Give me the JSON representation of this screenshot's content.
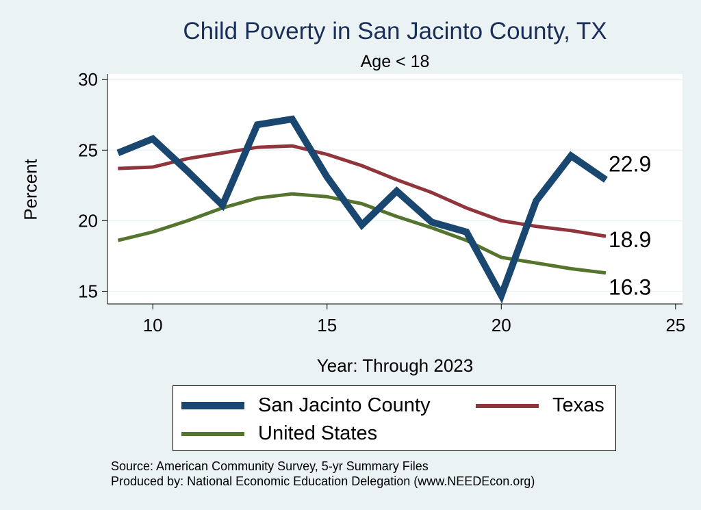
{
  "chart_data": {
    "type": "line",
    "title": "Child Poverty in San Jacinto County, TX",
    "subtitle": "Age < 18",
    "xlabel": "Year: Through 2023",
    "ylabel": "Percent",
    "xlim": [
      8.7,
      25.2
    ],
    "ylim": [
      14.1,
      30.4
    ],
    "xticks": [
      10,
      15,
      20,
      25
    ],
    "yticks": [
      15,
      20,
      25,
      30
    ],
    "grid": true,
    "legend_position": "bottom",
    "series": [
      {
        "name": "San Jacinto County",
        "color": "#1a476f",
        "x": [
          9,
          10,
          11,
          12,
          13,
          14,
          15,
          16,
          17,
          18,
          19,
          20,
          21,
          22,
          23
        ],
        "y": [
          24.8,
          25.8,
          23.5,
          21.1,
          26.8,
          27.2,
          23.1,
          19.7,
          22.1,
          19.9,
          19.2,
          14.7,
          21.4,
          24.6,
          22.9
        ],
        "end_label": "22.9"
      },
      {
        "name": "Texas",
        "color": "#90353b",
        "x": [
          9,
          10,
          11,
          12,
          13,
          14,
          15,
          16,
          17,
          18,
          19,
          20,
          21,
          22,
          23
        ],
        "y": [
          23.7,
          23.8,
          24.4,
          24.8,
          25.2,
          25.3,
          24.7,
          23.9,
          22.9,
          22.0,
          20.9,
          20.0,
          19.6,
          19.3,
          18.9
        ],
        "end_label": "18.9"
      },
      {
        "name": "United States",
        "color": "#55752f",
        "x": [
          9,
          10,
          11,
          12,
          13,
          14,
          15,
          16,
          17,
          18,
          19,
          20,
          21,
          22,
          23
        ],
        "y": [
          18.6,
          19.2,
          20.0,
          20.9,
          21.6,
          21.9,
          21.7,
          21.2,
          20.3,
          19.5,
          18.6,
          17.4,
          17.0,
          16.6,
          16.3
        ],
        "end_label": "16.3"
      }
    ]
  },
  "footer": {
    "source": "Source: American Community Survey, 5-yr Summary Files",
    "produced_by": "Produced by: National Economic Education Delegation (www.NEEDEcon.org)"
  }
}
